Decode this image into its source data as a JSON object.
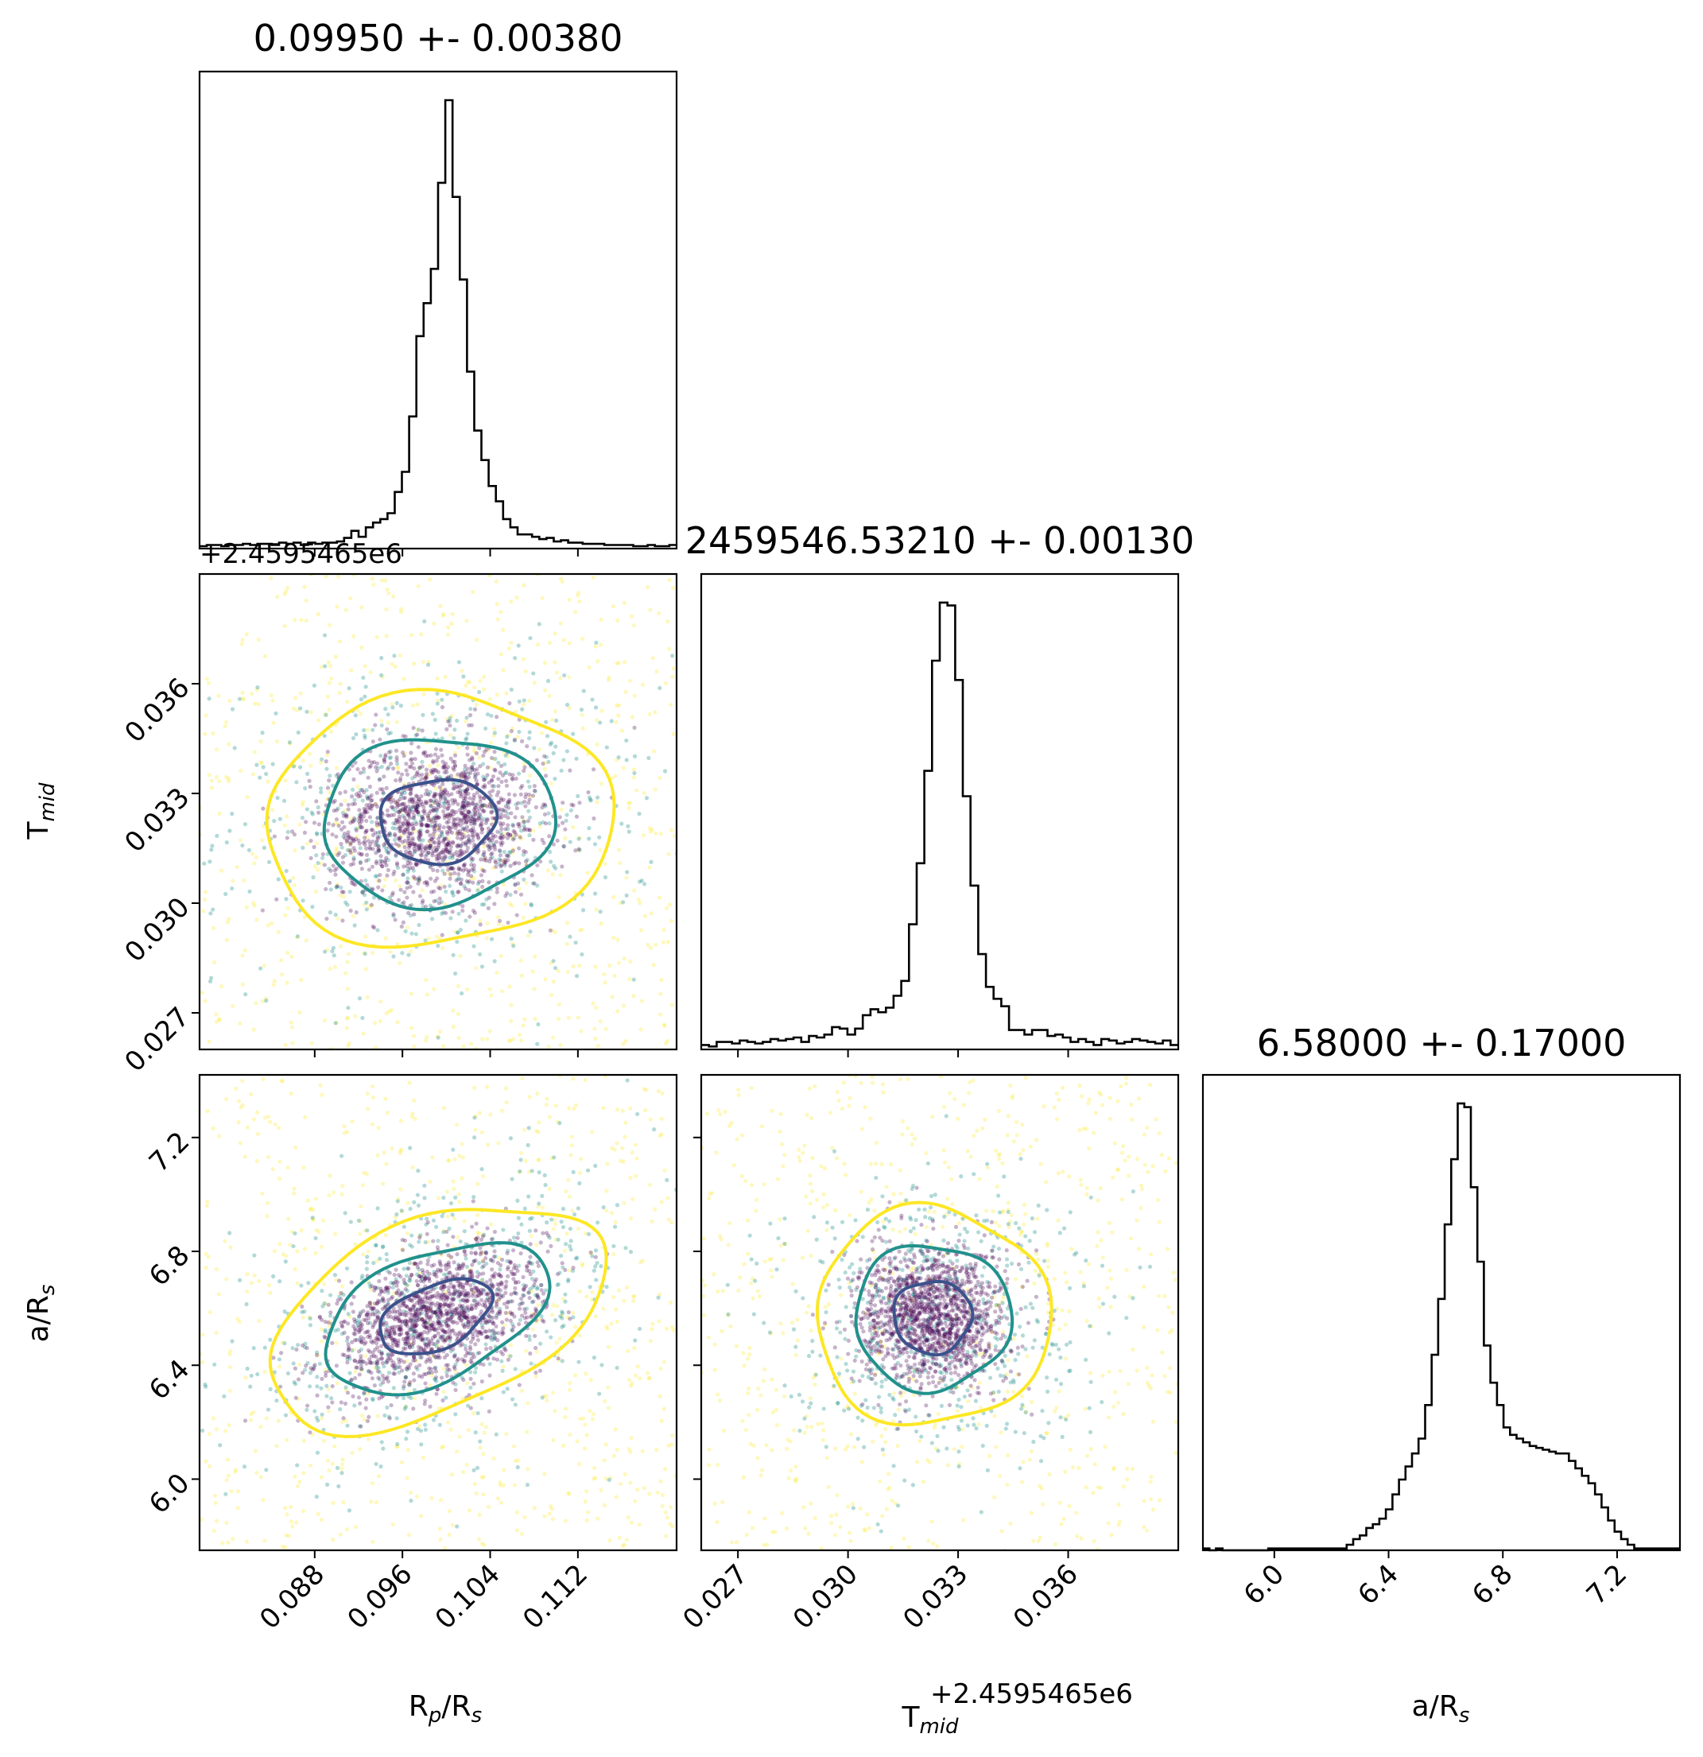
{
  "chart_data": {
    "type": "corner",
    "parameters": [
      {
        "name": "R_p/R_s",
        "label_base": "R",
        "label_sub": "p",
        "label_rest": "/R",
        "label_sub2": "s"
      },
      {
        "name": "T_mid",
        "label_base": "T",
        "label_sub": "mid",
        "label_rest": "",
        "label_sub2": ""
      },
      {
        "name": "a/R_s",
        "label_base": "a/R",
        "label_sub": "s",
        "label_rest": "",
        "label_sub2": ""
      }
    ],
    "titles": [
      "0.09950 +- 0.00380",
      "2459546.53210 +- 0.00130",
      "6.58000 +- 0.17000"
    ],
    "offset_text": "+2.4595465e6",
    "ranges": {
      "rp": [
        0.0775,
        0.121
      ],
      "tmid": [
        0.026,
        0.039
      ],
      "ars": [
        5.75,
        7.42
      ]
    },
    "ticks": {
      "rp": [
        "0.088",
        "0.096",
        "0.104",
        "0.112"
      ],
      "tmid": [
        "0.027",
        "0.030",
        "0.033",
        "0.036"
      ],
      "tmid_left": [
        "0.027",
        "0.030",
        "0.033",
        "0.036"
      ],
      "ars": [
        "6.0",
        "6.4",
        "6.8",
        "7.2"
      ],
      "ars_left": [
        "6.0",
        "6.4",
        "6.8",
        "7.2"
      ]
    },
    "histograms": {
      "rp": {
        "bin_start": 0.0775,
        "bin_end": 0.121,
        "counts": [
          2,
          3,
          3,
          2,
          3,
          3,
          4,
          3,
          4,
          4,
          3,
          5,
          4,
          5,
          3,
          5,
          4,
          5,
          5,
          6,
          9,
          15,
          10,
          18,
          22,
          25,
          30,
          48,
          65,
          112,
          180,
          208,
          237,
          310,
          380,
          298,
          228,
          150,
          100,
          75,
          53,
          40,
          25,
          18,
          12,
          12,
          10,
          8,
          9,
          6,
          7,
          5,
          5,
          4,
          4,
          4,
          3,
          3,
          3,
          3,
          2,
          2,
          3,
          2,
          2,
          3
        ]
      },
      "tmid": {
        "bin_start": 0.026,
        "bin_end": 0.039,
        "counts": [
          3,
          2,
          5,
          5,
          4,
          6,
          5,
          4,
          5,
          7,
          6,
          7,
          8,
          5,
          9,
          8,
          10,
          15,
          14,
          10,
          14,
          23,
          27,
          25,
          28,
          36,
          46,
          84,
          125,
          187,
          261,
          300,
          298,
          248,
          170,
          110,
          64,
          42,
          34,
          29,
          13,
          13,
          10,
          13,
          13,
          9,
          10,
          8,
          5,
          7,
          5,
          3,
          7,
          6,
          4,
          5,
          7,
          6,
          5,
          4,
          6,
          3
        ]
      },
      "ars": {
        "bin_start": 5.75,
        "bin_end": 7.42,
        "counts": [
          1,
          0,
          1,
          0,
          0,
          0,
          0,
          0,
          0,
          0,
          1,
          1,
          1,
          1,
          1,
          1,
          1,
          1,
          1,
          1,
          1,
          1,
          3,
          6,
          8,
          12,
          14,
          17,
          22,
          30,
          38,
          45,
          52,
          60,
          78,
          105,
          135,
          175,
          210,
          240,
          238,
          195,
          155,
          110,
          90,
          78,
          66,
          62,
          60,
          58,
          56,
          55,
          54,
          53,
          52,
          52,
          48,
          44,
          40,
          36,
          30,
          23,
          16,
          10,
          6,
          3,
          1,
          1,
          1,
          1,
          1,
          1,
          1
        ]
      }
    },
    "scatter_colors": {
      "outer": "#fde725",
      "mid": "#21918c",
      "inner": "#440154"
    },
    "contour_colors": [
      "#3b528b",
      "#21918c",
      "#fde725"
    ],
    "histogram_color": "#000000",
    "grid": false,
    "legend": "none"
  }
}
